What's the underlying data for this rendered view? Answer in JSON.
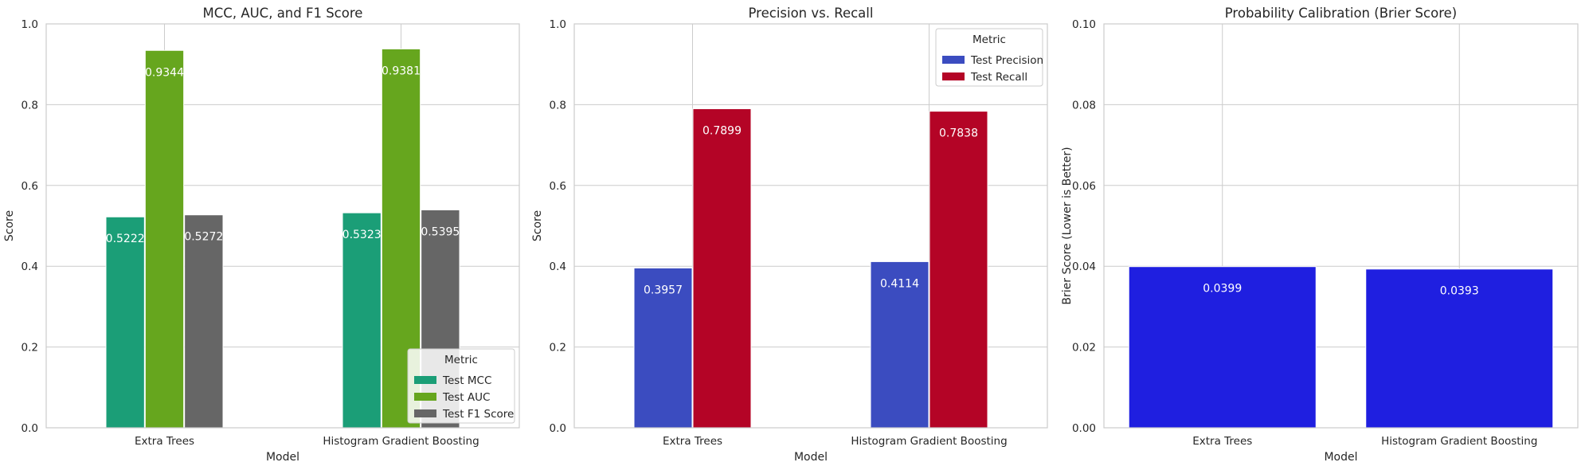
{
  "chart_data": [
    {
      "type": "bar",
      "title": "MCC, AUC, and F1 Score",
      "xlabel": "Model",
      "ylabel": "Score",
      "ylim": [
        0,
        1.0
      ],
      "yticks": [
        "0.0",
        "0.2",
        "0.4",
        "0.6",
        "0.8",
        "1.0"
      ],
      "categories": [
        "Extra Trees",
        "Histogram Gradient Boosting"
      ],
      "legend": {
        "title": "Metric",
        "placement": "lower-right"
      },
      "grid": true,
      "series": [
        {
          "name": "Test MCC",
          "color": "#1b9e77",
          "values": [
            0.5222,
            0.5323
          ],
          "labels": [
            "0.5222",
            "0.5323"
          ]
        },
        {
          "name": "Test AUC",
          "color": "#66a61e",
          "values": [
            0.9344,
            0.9381
          ],
          "labels": [
            "0.9344",
            "0.9381"
          ]
        },
        {
          "name": "Test F1 Score",
          "color": "#666666",
          "values": [
            0.5272,
            0.5395
          ],
          "labels": [
            "0.5272",
            "0.5395"
          ]
        }
      ]
    },
    {
      "type": "bar",
      "title": "Precision vs. Recall",
      "xlabel": "Model",
      "ylabel": "Score",
      "ylim": [
        0,
        1.0
      ],
      "yticks": [
        "0.0",
        "0.2",
        "0.4",
        "0.6",
        "0.8",
        "1.0"
      ],
      "categories": [
        "Extra Trees",
        "Histogram Gradient Boosting"
      ],
      "legend": {
        "title": "Metric",
        "placement": "upper-right"
      },
      "grid": true,
      "series": [
        {
          "name": "Test Precision",
          "color": "#3b4cc0",
          "values": [
            0.3957,
            0.4114
          ],
          "labels": [
            "0.3957",
            "0.4114"
          ]
        },
        {
          "name": "Test Recall",
          "color": "#b40426",
          "values": [
            0.7899,
            0.7838
          ],
          "labels": [
            "0.7899",
            "0.7838"
          ]
        }
      ]
    },
    {
      "type": "bar",
      "title": "Probability Calibration (Brier Score)",
      "xlabel": "Model",
      "ylabel": "Brier Score (Lower is Better)",
      "ylim": [
        0,
        0.1
      ],
      "yticks": [
        "0.00",
        "0.02",
        "0.04",
        "0.06",
        "0.08",
        "0.10"
      ],
      "categories": [
        "Extra Trees",
        "Histogram Gradient Boosting"
      ],
      "grid": true,
      "series": [
        {
          "color": "#1f1fe0",
          "values": [
            0.0399,
            0.0393
          ],
          "labels": [
            "0.0399",
            "0.0393"
          ]
        }
      ]
    }
  ]
}
